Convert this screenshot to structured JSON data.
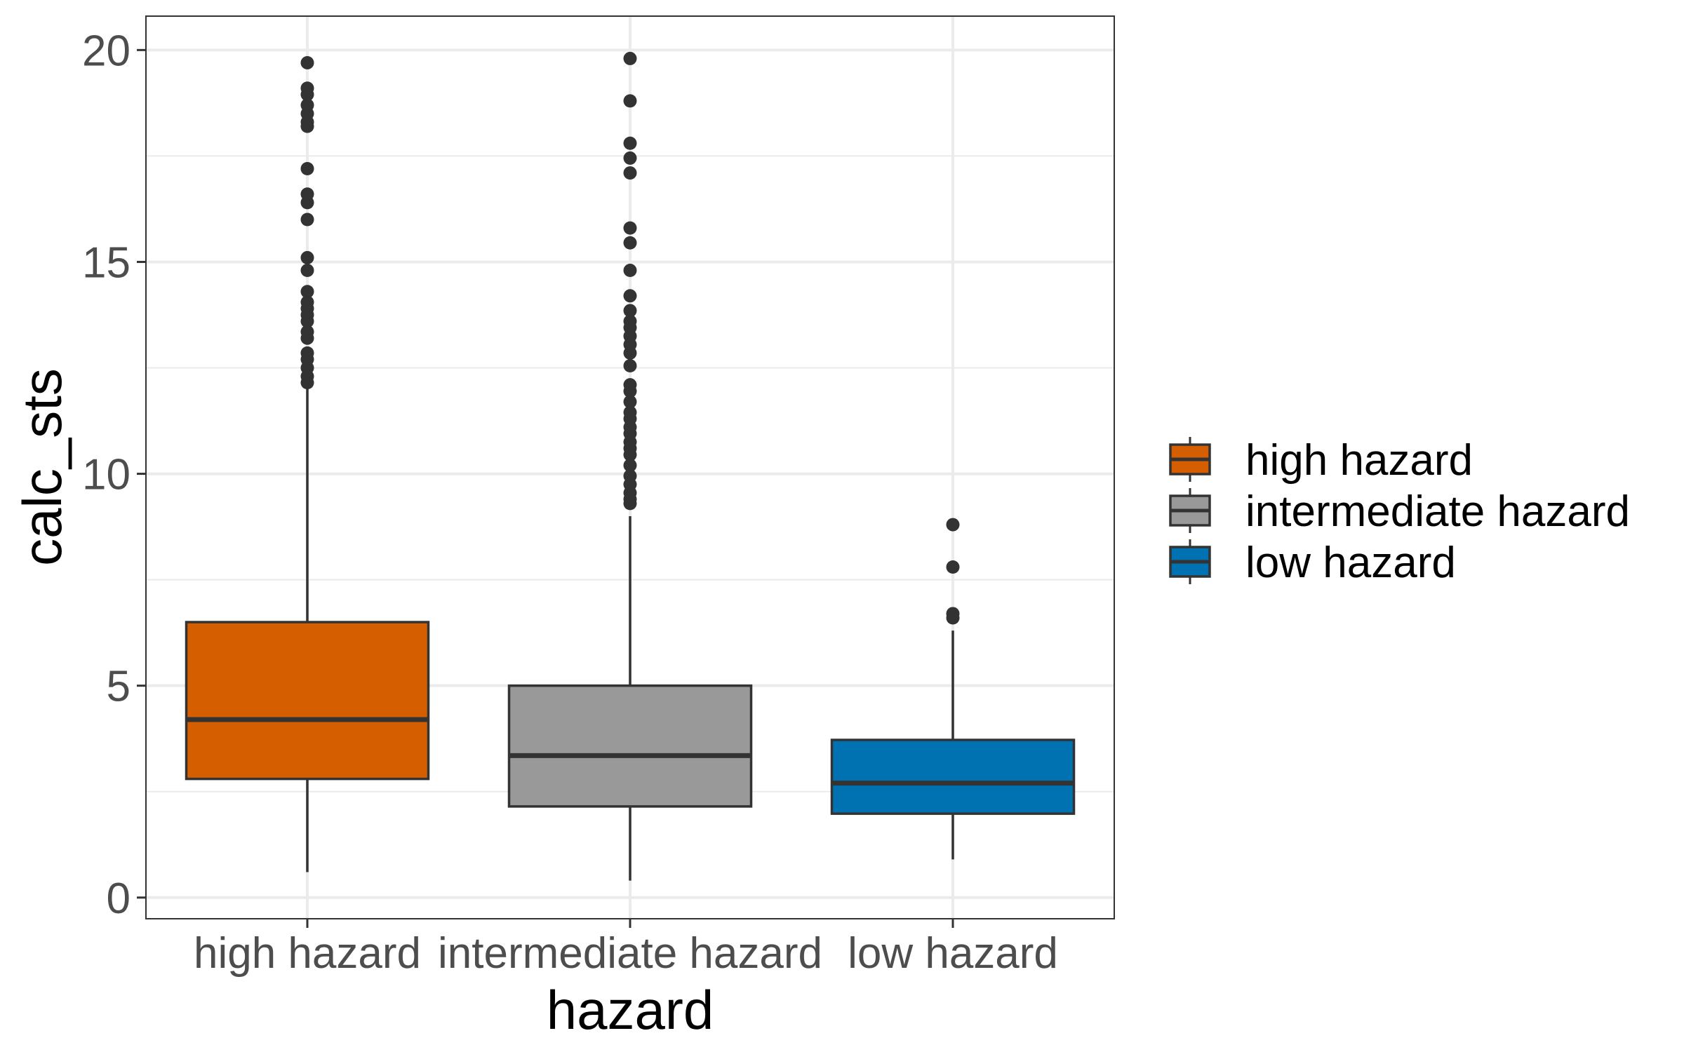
{
  "chart_data": {
    "type": "boxplot",
    "title": "",
    "xlabel": "hazard",
    "ylabel": "calc_sts",
    "ylim": [
      -0.5,
      20.8
    ],
    "yticks": [
      0,
      5,
      10,
      15,
      20
    ],
    "yticks_labels": [
      "0",
      "5",
      "10",
      "15",
      "20"
    ],
    "grid": true,
    "legend_title": "",
    "legend_position": "right",
    "categories": [
      "high hazard",
      "intermediate hazard",
      "low hazard"
    ],
    "series": [
      {
        "name": "high hazard",
        "color": "#d55e00",
        "min": 0.6,
        "q1": 2.8,
        "median": 4.2,
        "q3": 6.5,
        "max": 12.1,
        "outliers": [
          12.15,
          12.3,
          12.5,
          12.7,
          12.85,
          13.2,
          13.35,
          13.6,
          13.75,
          13.9,
          14.05,
          14.3,
          14.8,
          15.1,
          16.0,
          16.4,
          16.6,
          17.2,
          18.2,
          18.3,
          18.5,
          18.7,
          18.95,
          19.1,
          19.7
        ]
      },
      {
        "name": "intermediate hazard",
        "color": "#999999",
        "min": 0.4,
        "q1": 2.15,
        "median": 3.35,
        "q3": 5.0,
        "max": 9.0,
        "outliers": [
          9.3,
          9.4,
          9.55,
          9.75,
          9.95,
          10.2,
          10.45,
          10.6,
          10.75,
          10.95,
          11.1,
          11.3,
          11.45,
          11.7,
          11.95,
          12.1,
          12.55,
          12.85,
          13.05,
          13.25,
          13.45,
          13.6,
          13.85,
          14.2,
          14.8,
          15.45,
          15.8,
          17.1,
          17.45,
          17.8,
          18.8,
          19.8
        ]
      },
      {
        "name": "low hazard",
        "color": "#0072b2",
        "min": 0.9,
        "q1": 1.98,
        "median": 2.7,
        "q3": 3.72,
        "max": 6.3,
        "outliers": [
          6.6,
          6.7,
          7.8,
          8.8
        ]
      }
    ]
  }
}
